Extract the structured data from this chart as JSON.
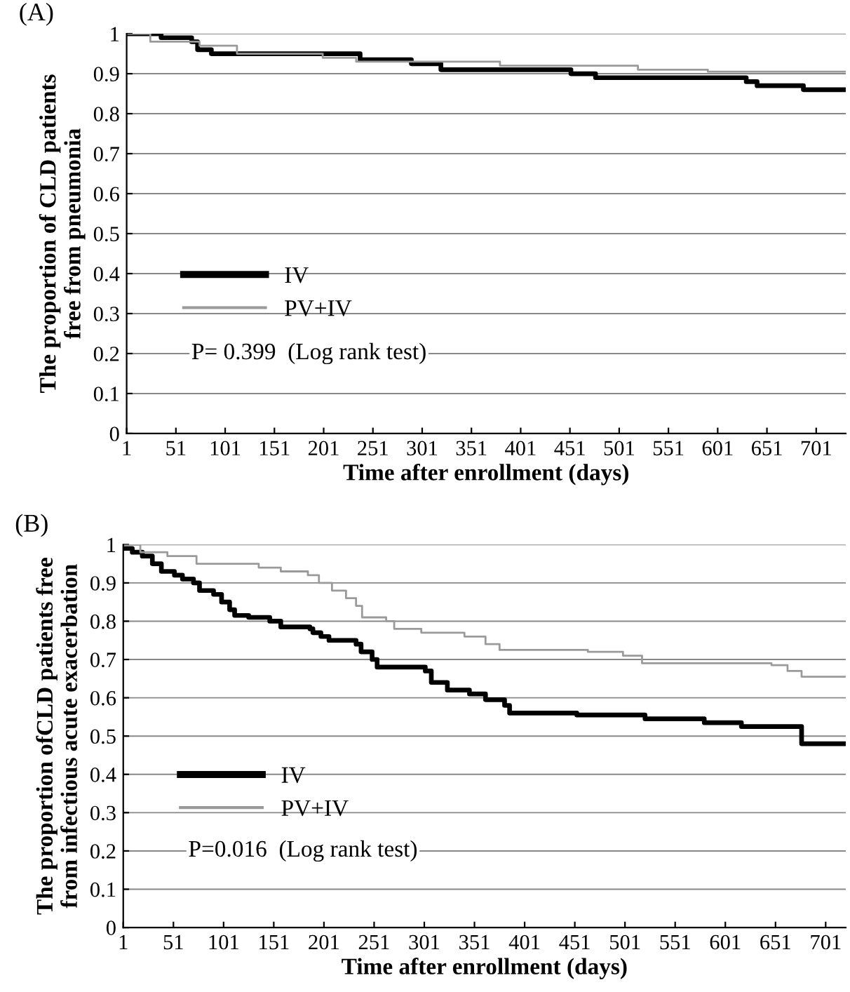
{
  "chart_data": [
    {
      "type": "step",
      "title": "(A)",
      "xlabel": "Time after enrollment (days)",
      "ylabel": "The proportion of CLD patients\nfree from pneumonia",
      "xlim": [
        1,
        731
      ],
      "xticks": [
        1,
        51,
        101,
        151,
        201,
        251,
        301,
        351,
        401,
        451,
        501,
        551,
        601,
        651,
        701
      ],
      "ylim": [
        0,
        1
      ],
      "yticks": [
        0,
        0.1,
        0.2,
        0.3,
        0.4,
        0.5,
        0.6,
        0.7,
        0.8,
        0.9,
        1
      ],
      "grid": "y",
      "legend": "left",
      "annotations": [
        "P= 0.399  (Log rank test)"
      ],
      "series": [
        {
          "name": "IV",
          "color": "#000000",
          "x": [
            1,
            36,
            67,
            73,
            87,
            230,
            238,
            290,
            320,
            452,
            477,
            630,
            641,
            688,
            731
          ],
          "values": [
            1,
            0.99,
            0.98,
            0.96,
            0.95,
            0.95,
            0.935,
            0.925,
            0.91,
            0.9,
            0.89,
            0.88,
            0.87,
            0.86,
            0.86
          ]
        },
        {
          "name": "PV+IV",
          "color": "#9a9a9a",
          "x": [
            1,
            25,
            75,
            113,
            200,
            234,
            318,
            380,
            520,
            591,
            731
          ],
          "values": [
            1,
            0.98,
            0.97,
            0.95,
            0.94,
            0.93,
            0.93,
            0.92,
            0.91,
            0.905,
            0.905
          ]
        }
      ]
    },
    {
      "type": "step",
      "title": "(B)",
      "xlabel": "Time after enrollment (days)",
      "ylabel": "The proportion ofCLD patients free\nfrom infectious acute exacerbation",
      "xlim": [
        1,
        721
      ],
      "xticks": [
        1,
        51,
        101,
        151,
        201,
        251,
        301,
        351,
        401,
        451,
        501,
        551,
        601,
        651,
        701
      ],
      "ylim": [
        0,
        1
      ],
      "yticks": [
        0,
        0.1,
        0.2,
        0.3,
        0.4,
        0.5,
        0.6,
        0.7,
        0.8,
        0.9,
        1
      ],
      "grid": "y",
      "legend": "left",
      "annotations": [
        "P=0.016  (Log rank test)"
      ],
      "series": [
        {
          "name": "IV",
          "color": "#000000",
          "x": [
            1,
            10,
            20,
            30,
            39,
            52,
            60,
            71,
            77,
            91,
            99,
            107,
            112,
            126,
            147,
            158,
            187,
            190,
            198,
            206,
            233,
            238,
            249,
            254,
            302,
            308,
            324,
            346,
            362,
            381,
            386,
            453,
            521,
            580,
            617,
            677,
            720
          ],
          "values": [
            0.99,
            0.98,
            0.97,
            0.95,
            0.93,
            0.92,
            0.91,
            0.9,
            0.88,
            0.87,
            0.85,
            0.83,
            0.815,
            0.81,
            0.8,
            0.785,
            0.78,
            0.77,
            0.76,
            0.75,
            0.74,
            0.72,
            0.7,
            0.68,
            0.67,
            0.64,
            0.62,
            0.61,
            0.595,
            0.58,
            0.56,
            0.555,
            0.545,
            0.535,
            0.525,
            0.48,
            0.48
          ]
        },
        {
          "name": "PV+IV",
          "color": "#9a9a9a",
          "x": [
            1,
            18,
            45,
            74,
            136,
            158,
            185,
            196,
            209,
            223,
            233,
            239,
            263,
            271,
            298,
            341,
            362,
            376,
            464,
            499,
            518,
            647,
            663,
            677,
            720
          ],
          "values": [
            1,
            0.98,
            0.97,
            0.95,
            0.94,
            0.93,
            0.92,
            0.9,
            0.88,
            0.86,
            0.84,
            0.81,
            0.8,
            0.78,
            0.77,
            0.76,
            0.74,
            0.725,
            0.72,
            0.71,
            0.69,
            0.685,
            0.67,
            0.655,
            0.655
          ]
        }
      ]
    }
  ]
}
